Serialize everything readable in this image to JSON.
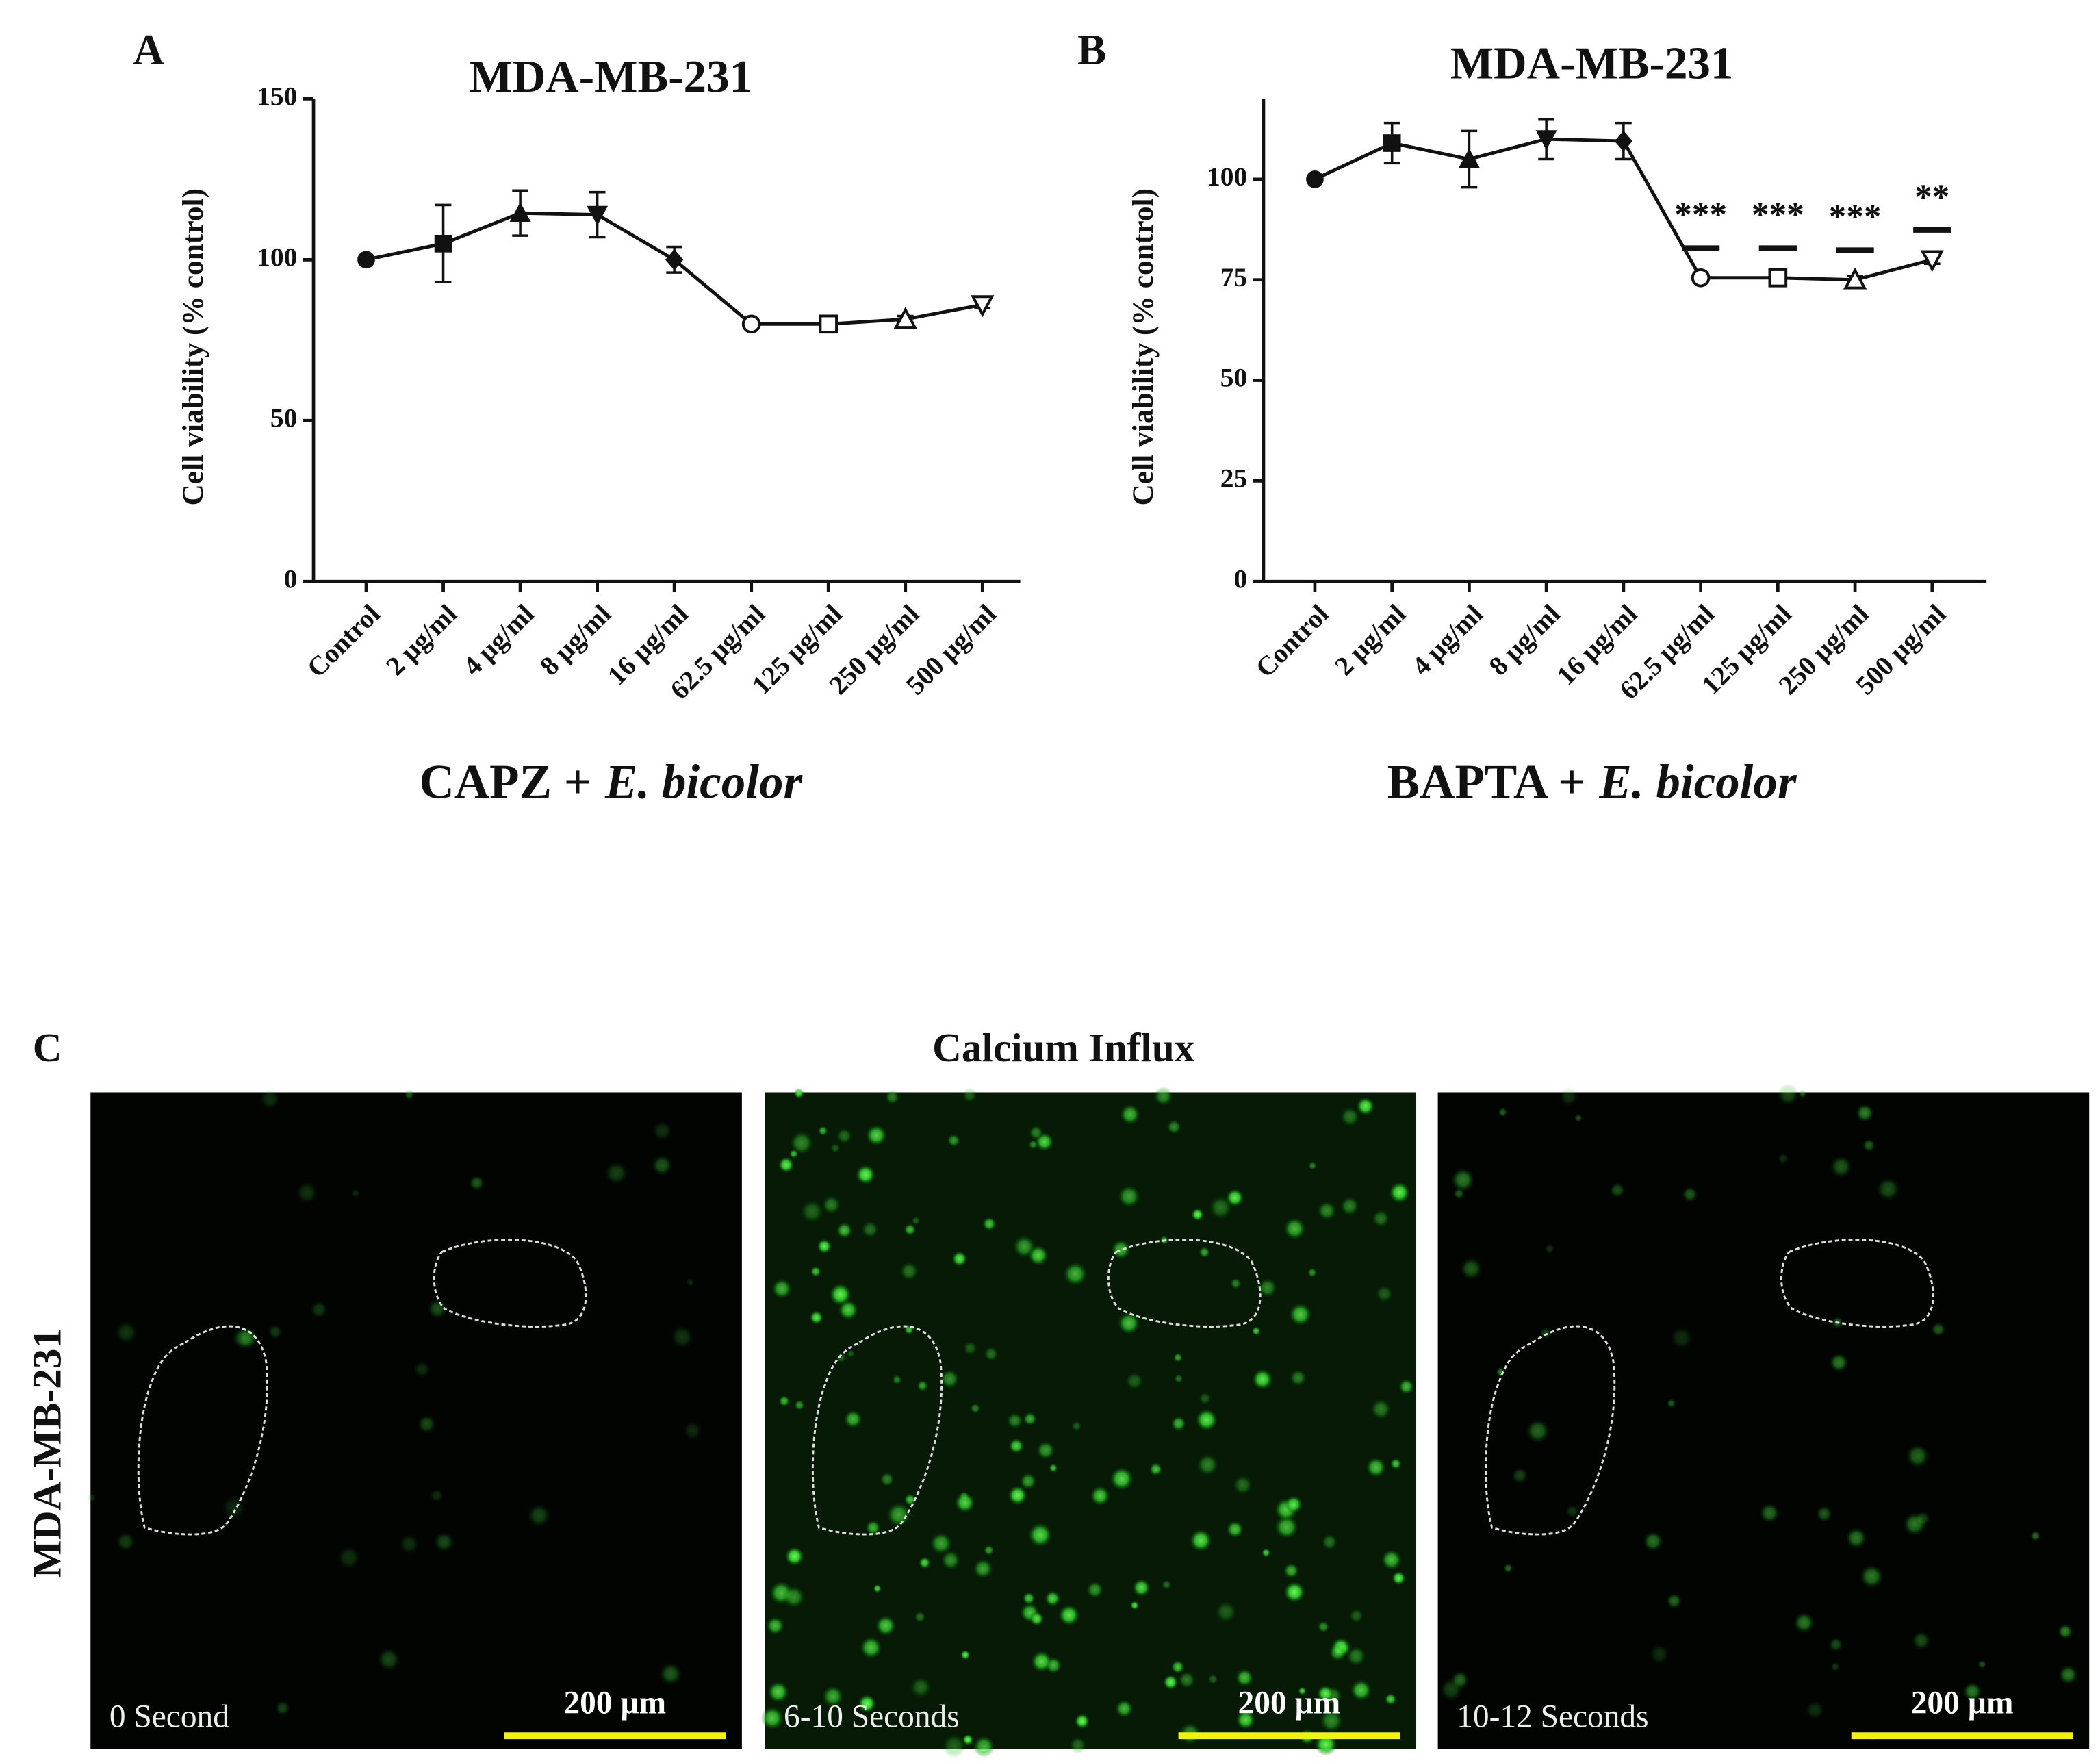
{
  "chart_data": [
    {
      "type": "line",
      "panel_label": "A",
      "title": "MDA-MB-231",
      "ylabel": "Cell viability (% control)",
      "xlabel": [
        "CAPZ +",
        "E. bicolor"
      ],
      "categories": [
        "Control",
        "2 µg/ml",
        "4 µg/ml",
        "8 µg/ml",
        "16 µg/ml",
        "62.5 µg/ml",
        "125 µg/ml",
        "250 µg/ml",
        "500 µg/ml"
      ],
      "values": [
        100,
        105,
        114.5,
        114,
        100,
        80,
        80,
        81.5,
        86
      ],
      "errors": [
        0,
        12,
        7,
        7,
        4,
        1,
        1,
        1,
        1
      ],
      "markers": [
        "circle",
        "square",
        "triangle",
        "triangle-down",
        "diamond",
        "circle-open",
        "square-open",
        "triangle-open",
        "triangle-down-open"
      ],
      "color": "#111111",
      "ylim": [
        0,
        150
      ],
      "yticks": [
        0,
        50,
        100,
        150
      ]
    },
    {
      "type": "line",
      "panel_label": "B",
      "title": "MDA-MB-231",
      "ylabel": "Cell viability (% control)",
      "xlabel": [
        "BAPTA +",
        "E. bicolor"
      ],
      "categories": [
        "Control",
        "2 µg/ml",
        "4 µg/ml",
        "8 µg/ml",
        "16 µg/ml",
        "62.5 µg/ml",
        "125 µg/ml",
        "250 µg/ml",
        "500 µg/ml"
      ],
      "values": [
        100,
        109,
        105,
        110,
        109.5,
        75.5,
        75.5,
        75,
        80
      ],
      "errors": [
        0,
        5,
        7,
        5,
        4.5,
        1,
        1,
        1,
        1
      ],
      "markers": [
        "circle",
        "square",
        "triangle",
        "triangle-down",
        "diamond",
        "circle-open",
        "square-open",
        "triangle-open",
        "triangle-down-open"
      ],
      "color": "#111111",
      "ylim": [
        0,
        120
      ],
      "yticks": [
        0,
        25,
        50,
        75,
        100
      ],
      "annotations": [
        {
          "category": "62.5 µg/ml",
          "text": "***"
        },
        {
          "category": "125 µg/ml",
          "text": "***"
        },
        {
          "category": "250 µg/ml",
          "text": "***"
        },
        {
          "category": "500 µg/ml",
          "text": "**"
        }
      ]
    }
  ],
  "panel_c": {
    "panel_label": "C",
    "title": "Calcium Influx",
    "row_label": "MDA-MB-231",
    "images": [
      {
        "caption": "0 Second",
        "scale_bar": "200 µm"
      },
      {
        "caption": "6-10 Seconds",
        "scale_bar": "200 µm"
      },
      {
        "caption": "10-12 Seconds",
        "scale_bar": "200 µm"
      }
    ]
  }
}
